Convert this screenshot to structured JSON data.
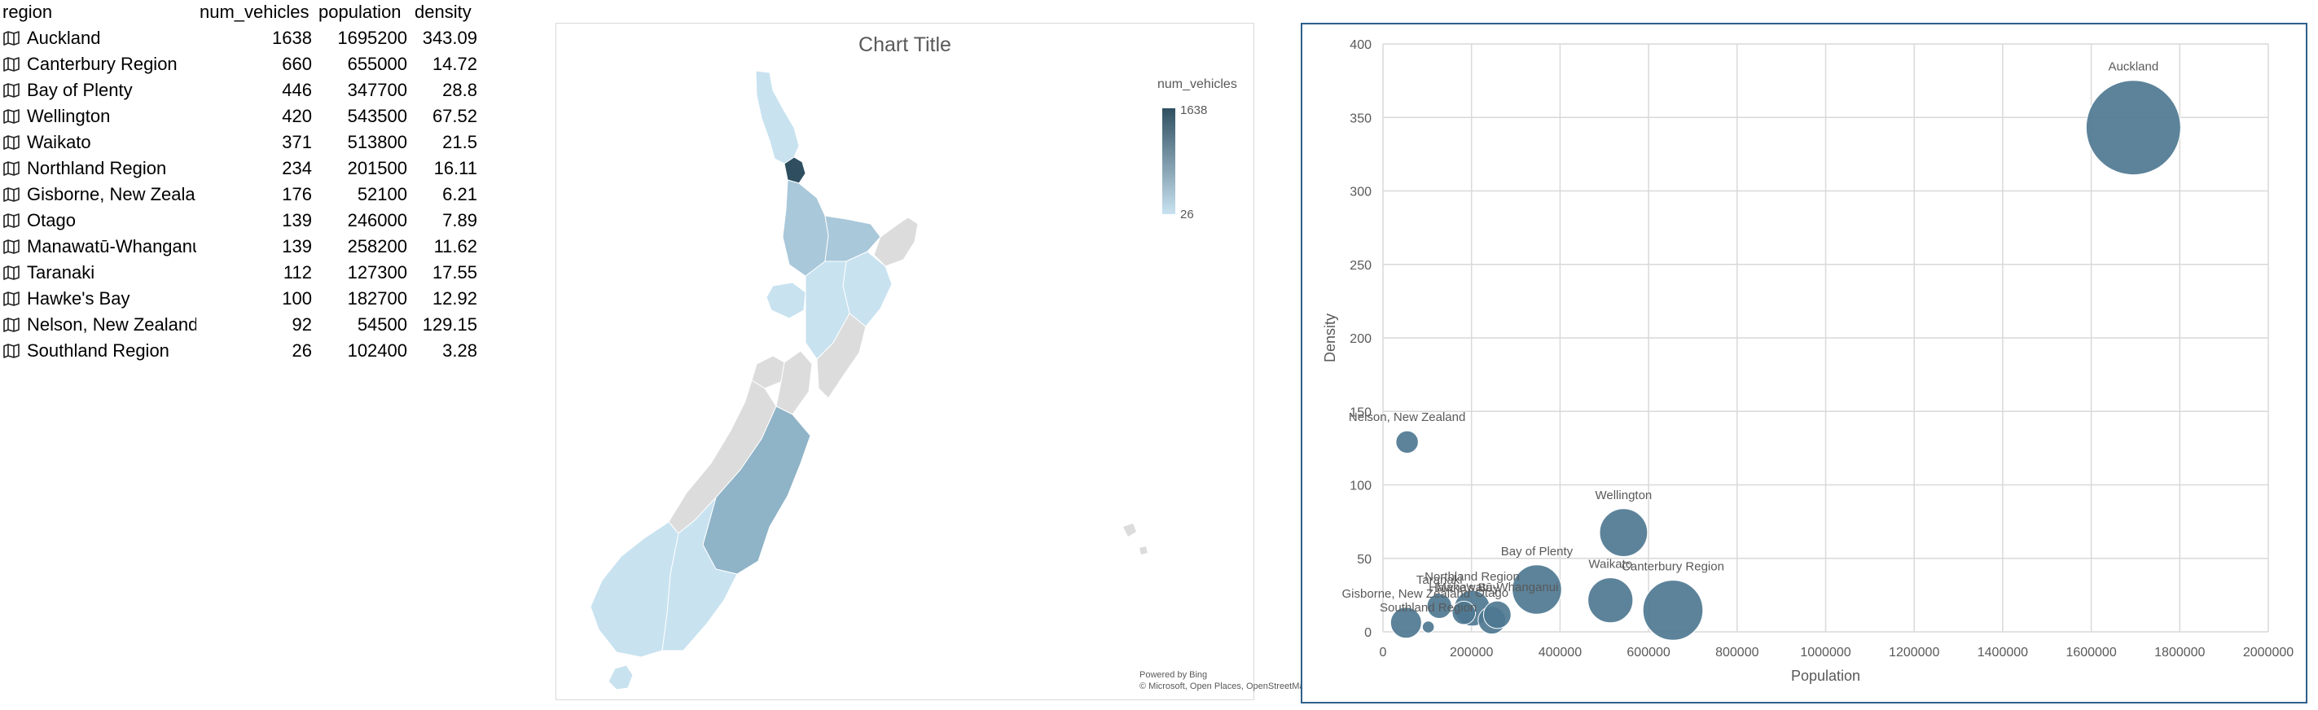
{
  "table": {
    "headers": [
      "region",
      "num_vehicles",
      "population",
      "density"
    ],
    "rows": [
      {
        "region": "Auckland",
        "num_vehicles": "1638",
        "population": "1695200",
        "density": "343.09"
      },
      {
        "region": "Canterbury Region",
        "num_vehicles": "660",
        "population": "655000",
        "density": "14.72"
      },
      {
        "region": "Bay of Plenty",
        "num_vehicles": "446",
        "population": "347700",
        "density": "28.8"
      },
      {
        "region": "Wellington",
        "num_vehicles": "420",
        "population": "543500",
        "density": "67.52"
      },
      {
        "region": "Waikato",
        "num_vehicles": "371",
        "population": "513800",
        "density": "21.5"
      },
      {
        "region": "Northland Region",
        "num_vehicles": "234",
        "population": "201500",
        "density": "16.11"
      },
      {
        "region": "Gisborne, New Zealand",
        "num_vehicles": "176",
        "population": "52100",
        "density": "6.21"
      },
      {
        "region": "Otago",
        "num_vehicles": "139",
        "population": "246000",
        "density": "7.89"
      },
      {
        "region": "Manawatū-Whanganui",
        "num_vehicles": "139",
        "population": "258200",
        "density": "11.62"
      },
      {
        "region": "Taranaki",
        "num_vehicles": "112",
        "population": "127300",
        "density": "17.55"
      },
      {
        "region": "Hawke's Bay",
        "num_vehicles": "100",
        "population": "182700",
        "density": "12.92"
      },
      {
        "region": "Nelson, New Zealand",
        "num_vehicles": "92",
        "population": "54500",
        "density": "129.15"
      },
      {
        "region": "Southland Region",
        "num_vehicles": "26",
        "population": "102400",
        "density": "3.28"
      }
    ]
  },
  "map_chart": {
    "title": "Chart Title",
    "legend_title": "num_vehicles",
    "legend_max": "1638",
    "legend_min": "26",
    "attribution_1": "Powered by Bing",
    "attribution_2": "© Microsoft, Open Places, OpenStreetMap",
    "colors": {
      "high": "#2f4f61",
      "mid": "#8fb3c7",
      "low": "#c8e2f0",
      "none": "#dcdcdc"
    }
  },
  "chart_data": {
    "type": "scatter",
    "subtype": "bubble",
    "title": "",
    "xlabel": "Population",
    "ylabel": "Density",
    "xlim": [
      0,
      2000000
    ],
    "ylim": [
      0,
      400
    ],
    "x_ticks": [
      "0",
      "200000",
      "400000",
      "600000",
      "800000",
      "1000000",
      "1200000",
      "1400000",
      "1600000",
      "1800000",
      "2000000"
    ],
    "y_ticks": [
      "0",
      "50",
      "100",
      "150",
      "200",
      "250",
      "300",
      "350",
      "400"
    ],
    "grid": true,
    "bubble_color": "#4e7891",
    "series": [
      {
        "points": [
          {
            "label": "Auckland",
            "x": 1695200,
            "y": 343.09,
            "size": 1638
          },
          {
            "label": "Canterbury Region",
            "x": 655000,
            "y": 14.72,
            "size": 660
          },
          {
            "label": "Bay of Plenty",
            "x": 347700,
            "y": 28.8,
            "size": 446
          },
          {
            "label": "Wellington",
            "x": 543500,
            "y": 67.52,
            "size": 420
          },
          {
            "label": "Waikato",
            "x": 513800,
            "y": 21.5,
            "size": 371
          },
          {
            "label": "Northland Region",
            "x": 201500,
            "y": 16.11,
            "size": 234
          },
          {
            "label": "Gisborne, New Zealand",
            "x": 52100,
            "y": 6.21,
            "size": 176
          },
          {
            "label": "Otago",
            "x": 246000,
            "y": 7.89,
            "size": 139
          },
          {
            "label": "Manawatū-Whanganui",
            "x": 258200,
            "y": 11.62,
            "size": 139
          },
          {
            "label": "Taranaki",
            "x": 127300,
            "y": 17.55,
            "size": 112
          },
          {
            "label": "Hawke's Bay",
            "x": 182700,
            "y": 12.92,
            "size": 100
          },
          {
            "label": "Nelson, New Zealand",
            "x": 54500,
            "y": 129.15,
            "size": 92
          },
          {
            "label": "Southland Region",
            "x": 102400,
            "y": 3.28,
            "size": 26
          }
        ]
      }
    ]
  }
}
